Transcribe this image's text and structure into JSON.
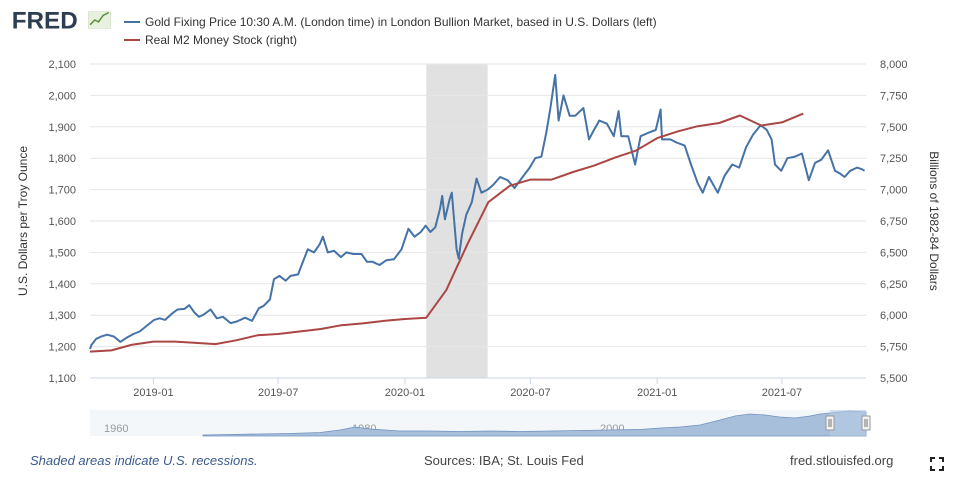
{
  "brand": {
    "logo_text": "FRED"
  },
  "legend": {
    "gold_label": "Gold Fixing Price 10:30 A.M. (London time) in London Bullion Market, based in U.S. Dollars (left)",
    "m2_label": "Real M2 Money Stock (right)"
  },
  "axes": {
    "left_label": "U.S. Dollars per Troy Ounce",
    "right_label": "Billions of 1982-84 Dollars",
    "left_ticks": [
      "2,100",
      "2,000",
      "1,900",
      "1,800",
      "1,700",
      "1,600",
      "1,500",
      "1,400",
      "1,300",
      "1,200",
      "1,100"
    ],
    "right_ticks": [
      "8,000",
      "7,750",
      "7,500",
      "7,250",
      "7,000",
      "6,750",
      "6,500",
      "6,250",
      "6,000",
      "5,750",
      "5,500"
    ],
    "x_ticks": [
      "2019-01",
      "2019-07",
      "2020-01",
      "2020-07",
      "2021-01",
      "2021-07"
    ]
  },
  "navigator": {
    "labels": [
      "1960",
      "1980",
      "2000",
      "20"
    ]
  },
  "footer": {
    "recession_note": "Shaded areas indicate U.S. recessions.",
    "sources": "Sources: IBA; St. Louis Fed",
    "site": "fred.stlouisfed.org"
  },
  "colors": {
    "gold": "#4572a7",
    "m2": "#aa4643",
    "recession": "#e1e1e1",
    "navigator_fill": "#a8bfdc"
  },
  "chart_data": {
    "type": "line",
    "x_range": [
      "2018-10-01",
      "2021-10-31"
    ],
    "recession": {
      "start": "2020-02-01",
      "end": "2020-04-30"
    },
    "left_axis": {
      "label": "U.S. Dollars per Troy Ounce",
      "ylim": [
        1100,
        2100
      ]
    },
    "right_axis": {
      "label": "Billions of 1982-84 Dollars",
      "ylim": [
        5500,
        8000
      ]
    },
    "series": [
      {
        "name": "Gold Fixing Price 10:30 A.M. (London time) in London Bullion Market, based in U.S. Dollars (left)",
        "axis": "left",
        "points": [
          [
            "2018-10-01",
            1192
          ],
          [
            "2018-10-03",
            1205
          ],
          [
            "2018-10-10",
            1225
          ],
          [
            "2018-10-17",
            1232
          ],
          [
            "2018-10-26",
            1238
          ],
          [
            "2018-11-05",
            1232
          ],
          [
            "2018-11-14",
            1215
          ],
          [
            "2018-11-23",
            1228
          ],
          [
            "2018-12-03",
            1240
          ],
          [
            "2018-12-12",
            1248
          ],
          [
            "2018-12-20",
            1262
          ],
          [
            "2019-01-02",
            1285
          ],
          [
            "2019-01-10",
            1290
          ],
          [
            "2019-01-18",
            1285
          ],
          [
            "2019-01-28",
            1305
          ],
          [
            "2019-02-05",
            1318
          ],
          [
            "2019-02-15",
            1320
          ],
          [
            "2019-02-22",
            1332
          ],
          [
            "2019-03-01",
            1310
          ],
          [
            "2019-03-08",
            1295
          ],
          [
            "2019-03-15",
            1302
          ],
          [
            "2019-03-25",
            1318
          ],
          [
            "2019-04-03",
            1290
          ],
          [
            "2019-04-12",
            1295
          ],
          [
            "2019-04-23",
            1275
          ],
          [
            "2019-05-02",
            1280
          ],
          [
            "2019-05-14",
            1292
          ],
          [
            "2019-05-24",
            1282
          ],
          [
            "2019-06-03",
            1322
          ],
          [
            "2019-06-10",
            1330
          ],
          [
            "2019-06-19",
            1350
          ],
          [
            "2019-06-25",
            1415
          ],
          [
            "2019-07-03",
            1425
          ],
          [
            "2019-07-12",
            1410
          ],
          [
            "2019-07-19",
            1425
          ],
          [
            "2019-07-30",
            1430
          ],
          [
            "2019-08-05",
            1465
          ],
          [
            "2019-08-13",
            1510
          ],
          [
            "2019-08-22",
            1500
          ],
          [
            "2019-08-30",
            1525
          ],
          [
            "2019-09-04",
            1550
          ],
          [
            "2019-09-11",
            1500
          ],
          [
            "2019-09-20",
            1505
          ],
          [
            "2019-09-30",
            1485
          ],
          [
            "2019-10-08",
            1500
          ],
          [
            "2019-10-18",
            1495
          ],
          [
            "2019-10-30",
            1495
          ],
          [
            "2019-11-07",
            1470
          ],
          [
            "2019-11-15",
            1470
          ],
          [
            "2019-11-25",
            1460
          ],
          [
            "2019-12-05",
            1475
          ],
          [
            "2019-12-16",
            1478
          ],
          [
            "2019-12-27",
            1510
          ],
          [
            "2020-01-06",
            1575
          ],
          [
            "2020-01-15",
            1550
          ],
          [
            "2020-01-24",
            1565
          ],
          [
            "2020-01-31",
            1585
          ],
          [
            "2020-02-07",
            1565
          ],
          [
            "2020-02-14",
            1580
          ],
          [
            "2020-02-21",
            1640
          ],
          [
            "2020-02-24",
            1680
          ],
          [
            "2020-02-28",
            1605
          ],
          [
            "2020-03-06",
            1670
          ],
          [
            "2020-03-09",
            1690
          ],
          [
            "2020-03-16",
            1510
          ],
          [
            "2020-03-19",
            1480
          ],
          [
            "2020-03-24",
            1560
          ],
          [
            "2020-03-30",
            1620
          ],
          [
            "2020-04-07",
            1660
          ],
          [
            "2020-04-14",
            1735
          ],
          [
            "2020-04-21",
            1690
          ],
          [
            "2020-04-30",
            1700
          ],
          [
            "2020-05-08",
            1715
          ],
          [
            "2020-05-18",
            1740
          ],
          [
            "2020-05-29",
            1730
          ],
          [
            "2020-06-08",
            1705
          ],
          [
            "2020-06-18",
            1735
          ],
          [
            "2020-06-30",
            1770
          ],
          [
            "2020-07-08",
            1800
          ],
          [
            "2020-07-17",
            1805
          ],
          [
            "2020-07-24",
            1880
          ],
          [
            "2020-07-30",
            1960
          ],
          [
            "2020-08-06",
            2065
          ],
          [
            "2020-08-11",
            1920
          ],
          [
            "2020-08-18",
            2000
          ],
          [
            "2020-08-27",
            1935
          ],
          [
            "2020-09-04",
            1935
          ],
          [
            "2020-09-16",
            1960
          ],
          [
            "2020-09-24",
            1860
          ],
          [
            "2020-09-30",
            1885
          ],
          [
            "2020-10-09",
            1920
          ],
          [
            "2020-10-20",
            1910
          ],
          [
            "2020-10-30",
            1870
          ],
          [
            "2020-11-06",
            1950
          ],
          [
            "2020-11-10",
            1870
          ],
          [
            "2020-11-20",
            1870
          ],
          [
            "2020-11-30",
            1780
          ],
          [
            "2020-12-08",
            1870
          ],
          [
            "2020-12-18",
            1880
          ],
          [
            "2020-12-30",
            1890
          ],
          [
            "2021-01-06",
            1955
          ],
          [
            "2021-01-08",
            1860
          ],
          [
            "2021-01-20",
            1860
          ],
          [
            "2021-01-29",
            1850
          ],
          [
            "2021-02-10",
            1840
          ],
          [
            "2021-02-19",
            1780
          ],
          [
            "2021-03-01",
            1720
          ],
          [
            "2021-03-08",
            1690
          ],
          [
            "2021-03-17",
            1740
          ],
          [
            "2021-03-30",
            1690
          ],
          [
            "2021-04-09",
            1745
          ],
          [
            "2021-04-20",
            1780
          ],
          [
            "2021-04-30",
            1770
          ],
          [
            "2021-05-10",
            1835
          ],
          [
            "2021-05-20",
            1875
          ],
          [
            "2021-05-31",
            1905
          ],
          [
            "2021-06-09",
            1890
          ],
          [
            "2021-06-16",
            1860
          ],
          [
            "2021-06-21",
            1780
          ],
          [
            "2021-06-30",
            1760
          ],
          [
            "2021-07-09",
            1800
          ],
          [
            "2021-07-20",
            1805
          ],
          [
            "2021-07-30",
            1815
          ],
          [
            "2021-08-09",
            1730
          ],
          [
            "2021-08-18",
            1785
          ],
          [
            "2021-08-27",
            1795
          ],
          [
            "2021-09-06",
            1825
          ],
          [
            "2021-09-16",
            1760
          ],
          [
            "2021-09-24",
            1750
          ],
          [
            "2021-09-30",
            1740
          ],
          [
            "2021-10-08",
            1760
          ],
          [
            "2021-10-18",
            1770
          ],
          [
            "2021-10-25",
            1765
          ],
          [
            "2021-10-29",
            1760
          ]
        ]
      },
      {
        "name": "Real M2 Money Stock (right)",
        "axis": "right",
        "points": [
          [
            "2018-10-01",
            5710
          ],
          [
            "2018-11-01",
            5720
          ],
          [
            "2018-12-01",
            5765
          ],
          [
            "2019-01-01",
            5790
          ],
          [
            "2019-02-01",
            5790
          ],
          [
            "2019-03-01",
            5780
          ],
          [
            "2019-04-01",
            5770
          ],
          [
            "2019-05-01",
            5800
          ],
          [
            "2019-06-01",
            5840
          ],
          [
            "2019-07-01",
            5850
          ],
          [
            "2019-08-01",
            5870
          ],
          [
            "2019-09-01",
            5890
          ],
          [
            "2019-10-01",
            5920
          ],
          [
            "2019-11-01",
            5935
          ],
          [
            "2019-12-01",
            5955
          ],
          [
            "2020-01-01",
            5970
          ],
          [
            "2020-02-01",
            5980
          ],
          [
            "2020-03-01",
            6200
          ],
          [
            "2020-04-01",
            6570
          ],
          [
            "2020-05-01",
            6900
          ],
          [
            "2020-06-01",
            7030
          ],
          [
            "2020-07-01",
            7080
          ],
          [
            "2020-08-01",
            7080
          ],
          [
            "2020-09-01",
            7140
          ],
          [
            "2020-10-01",
            7190
          ],
          [
            "2020-11-01",
            7255
          ],
          [
            "2020-12-01",
            7310
          ],
          [
            "2021-01-01",
            7410
          ],
          [
            "2021-02-01",
            7465
          ],
          [
            "2021-03-01",
            7505
          ],
          [
            "2021-04-01",
            7530
          ],
          [
            "2021-05-01",
            7590
          ],
          [
            "2021-06-01",
            7510
          ],
          [
            "2021-07-01",
            7535
          ],
          [
            "2021-08-01",
            7605
          ]
        ]
      }
    ]
  }
}
